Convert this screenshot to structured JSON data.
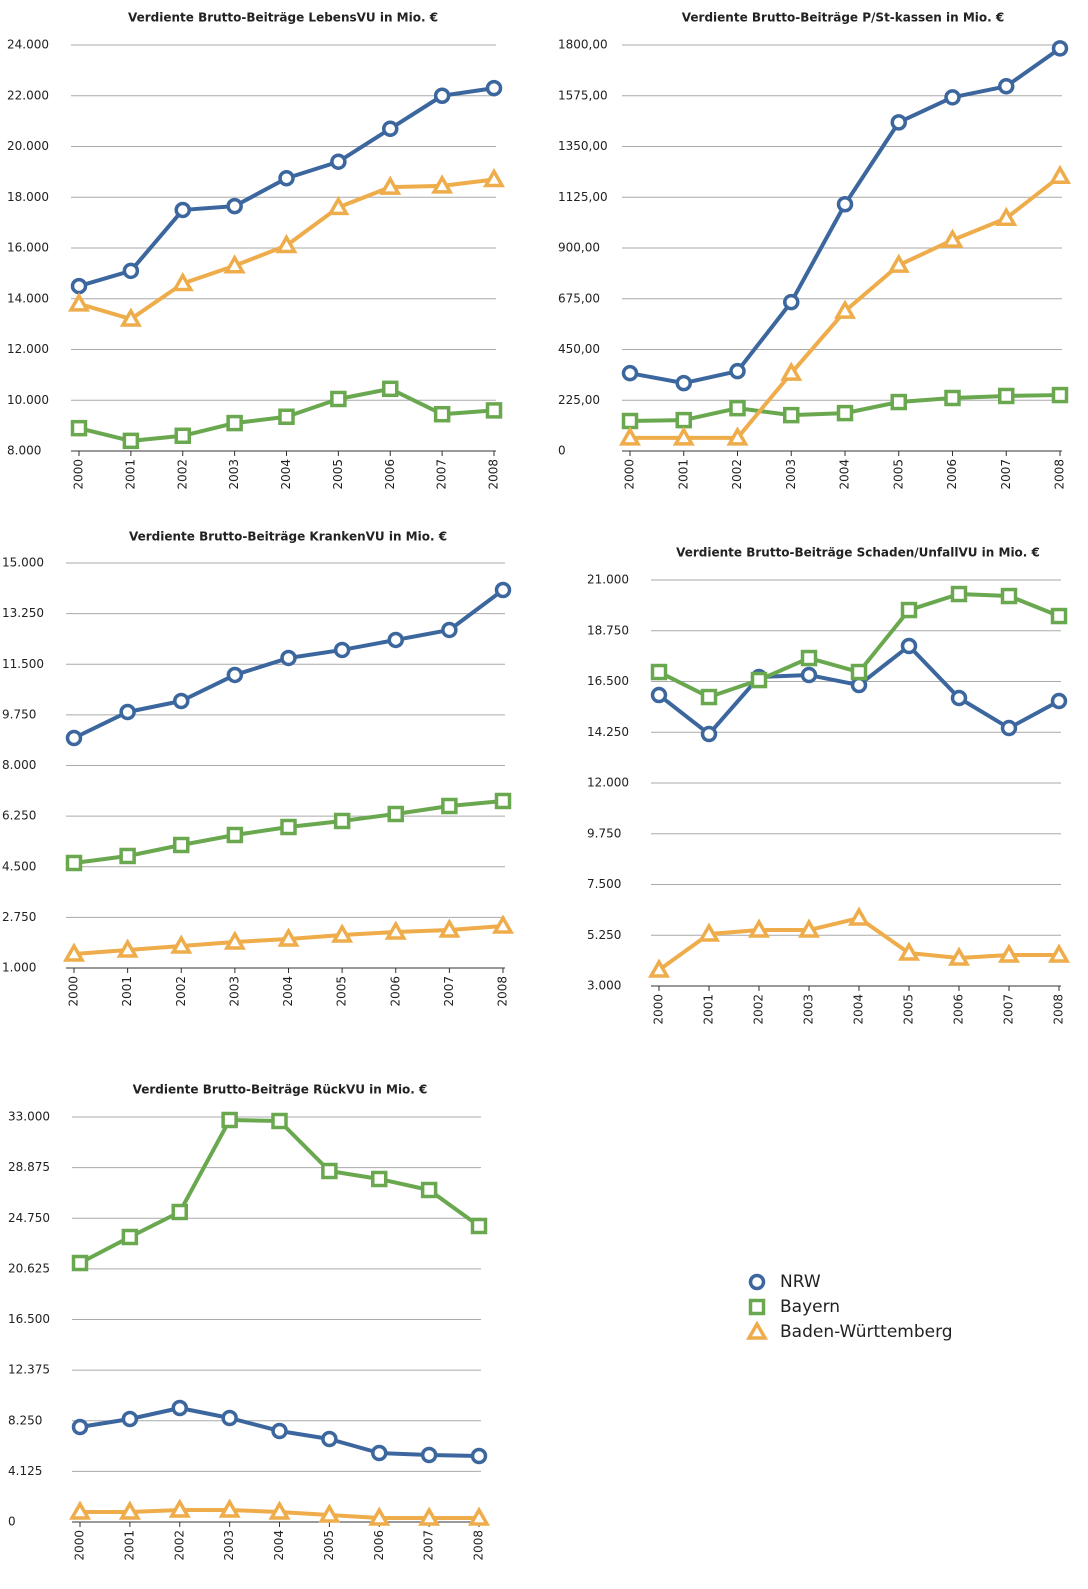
{
  "chart_data": [
    {
      "type": "line",
      "title": "Verdiente Brutto-Beiträge LebensVU in Mio. €",
      "categories": [
        "2000",
        "2001",
        "2002",
        "2003",
        "2004",
        "2005",
        "2006",
        "2007",
        "2008"
      ],
      "ylim": [
        8000,
        24000
      ],
      "yticks": [
        {
          "value": 8000,
          "label": "8.000"
        },
        {
          "value": 10000,
          "label": "10.000"
        },
        {
          "value": 12000,
          "label": "12.000"
        },
        {
          "value": 14000,
          "label": "14.000"
        },
        {
          "value": 16000,
          "label": "16.000"
        },
        {
          "value": 18000,
          "label": "18.000"
        },
        {
          "value": 20000,
          "label": "20.000"
        },
        {
          "value": 22000,
          "label": "22.000"
        },
        {
          "value": 24000,
          "label": "24.000"
        }
      ],
      "grid": true,
      "series": [
        {
          "name": "NRW",
          "color": "#3c679e",
          "marker": "circle",
          "values": [
            14500,
            15100,
            17500,
            17650,
            18750,
            19400,
            20700,
            22000,
            22300
          ]
        },
        {
          "name": "Bayern",
          "color": "#6aa84f",
          "marker": "square",
          "values": [
            8900,
            8400,
            8600,
            9100,
            9350,
            10050,
            10450,
            9450,
            9600
          ]
        },
        {
          "name": "Baden-Württemberg",
          "color": "#eeac4a",
          "marker": "triangle",
          "values": [
            13800,
            13200,
            14600,
            15300,
            16100,
            17600,
            18400,
            18450,
            18700
          ]
        }
      ]
    },
    {
      "type": "line",
      "title": "Verdiente Brutto-Beiträge P/St-kassen in Mio. €",
      "categories": [
        "2000",
        "2001",
        "2002",
        "2003",
        "2004",
        "2005",
        "2006",
        "2007",
        "2008"
      ],
      "ylim": [
        0,
        1800
      ],
      "yticks": [
        0,
        {
          "value": 225,
          "label": "225,00"
        },
        {
          "value": 450,
          "label": "450,00"
        },
        {
          "value": 675,
          "label": "675,00"
        },
        {
          "value": 900,
          "label": "900,00"
        },
        {
          "value": 1125,
          "label": "1125,00"
        },
        {
          "value": 1350,
          "label": "1350,00"
        },
        {
          "value": 1575,
          "label": "1575,00"
        },
        {
          "value": 1800,
          "label": "1800,00"
        }
      ],
      "grid": true,
      "series": [
        {
          "color": "#3c679e",
          "marker": "circle",
          "values": [
            345,
            301,
            354,
            660,
            1094,
            1457,
            1568,
            1617,
            1785
          ]
        },
        {
          "color": "#6aa84f",
          "marker": "square",
          "values": [
            133,
            137,
            190,
            159,
            168,
            217,
            235,
            244,
            248
          ]
        },
        {
          "color": "#eeac4a",
          "marker": "triangle",
          "values": [
            58,
            58,
            58,
            345,
            620,
            824,
            935,
            1032,
            1218
          ]
        }
      ]
    },
    {
      "type": "line",
      "title": "Verdiente Brutto-Beiträge KrankenVU in Mio. €",
      "categories": [
        "2000",
        "2001",
        "2002",
        "2003",
        "2004",
        "2005",
        "2006",
        "2007",
        "2008"
      ],
      "ylim": [
        1000,
        15000
      ],
      "yticks": [
        {
          "value": 1000,
          "label": "1.000"
        },
        {
          "value": 2750,
          "label": "2.750"
        },
        {
          "value": 4500,
          "label": "4.500"
        },
        {
          "value": 6250,
          "label": "6.250"
        },
        {
          "value": 8000,
          "label": "8.000"
        },
        {
          "value": 9750,
          "label": "9.750"
        },
        {
          "value": 11500,
          "label": "11.500"
        },
        {
          "value": 13250,
          "label": "13.250"
        },
        {
          "value": 15000,
          "label": "15.000"
        }
      ],
      "grid": true,
      "series": [
        {
          "color": "#3c679e",
          "marker": "circle",
          "values": [
            8951,
            9850,
            10230,
            11130,
            11717,
            11994,
            12340,
            12685,
            14067
          ]
        },
        {
          "color": "#6aa84f",
          "marker": "square",
          "values": [
            4630,
            4872,
            5252,
            5598,
            5874,
            6082,
            6324,
            6600,
            6773
          ]
        },
        {
          "color": "#eeac4a",
          "marker": "triangle",
          "values": [
            1484,
            1622,
            1760,
            1899,
            2003,
            2141,
            2245,
            2314,
            2452
          ]
        }
      ]
    },
    {
      "type": "line",
      "title": "Verdiente Brutto-Beiträge Schaden/UnfallVU in Mio. €",
      "categories": [
        "2000",
        "2001",
        "2002",
        "2003",
        "2004",
        "2005",
        "2006",
        "2007",
        "2008"
      ],
      "ylim": [
        3000,
        21000
      ],
      "yticks": [
        {
          "value": 3000,
          "label": "3.000"
        },
        {
          "value": 5250,
          "label": "5.250"
        },
        {
          "value": 7500,
          "label": "7.500"
        },
        {
          "value": 9750,
          "label": "9.750"
        },
        {
          "value": 12000,
          "label": "12.000"
        },
        {
          "value": 14250,
          "label": "14.250"
        },
        {
          "value": 16500,
          "label": "16.500"
        },
        {
          "value": 18750,
          "label": "18.750"
        },
        {
          "value": 21000,
          "label": "21.000"
        }
      ],
      "grid": true,
      "series": [
        {
          "color": "#3c679e",
          "marker": "circle",
          "values": [
            15900,
            14171,
            16698,
            16787,
            16343,
            18073,
            15768,
            14437,
            15634
          ]
        },
        {
          "color": "#6aa84f",
          "marker": "square",
          "values": [
            16920,
            15811,
            16565,
            17540,
            16920,
            19668,
            20378,
            20289,
            19402
          ]
        },
        {
          "color": "#eeac4a",
          "marker": "triangle",
          "values": [
            3709,
            5305,
            5482,
            5482,
            6014,
            4463,
            4241,
            4374,
            4374
          ]
        }
      ]
    },
    {
      "type": "line",
      "title": "Verdiente Brutto-Beiträge RückVU in Mio. €",
      "categories": [
        "2000",
        "2001",
        "2002",
        "2003",
        "2004",
        "2005",
        "2006",
        "2007",
        "2008"
      ],
      "ylim": [
        0,
        33000
      ],
      "yticks": [
        0,
        {
          "value": 4125,
          "label": "4.125"
        },
        {
          "value": 8250,
          "label": "8.250"
        },
        {
          "value": 12375,
          "label": "12.375"
        },
        {
          "value": 16500,
          "label": "16.500"
        },
        {
          "value": 20625,
          "label": "20.625"
        },
        {
          "value": 24750,
          "label": "24.750"
        },
        {
          "value": 28875,
          "label": "28.875"
        },
        {
          "value": 33000,
          "label": "33.000"
        }
      ],
      "grid": true,
      "series": [
        {
          "color": "#3c679e",
          "marker": "circle",
          "values": [
            7741,
            8393,
            9289,
            8474,
            7415,
            6763,
            5622,
            5459,
            5378
          ]
        },
        {
          "color": "#6aa84f",
          "marker": "square",
          "values": [
            21103,
            23222,
            25259,
            32756,
            32674,
            28600,
            27948,
            27052,
            24118
          ]
        },
        {
          "color": "#eeac4a",
          "marker": "triangle",
          "values": [
            815,
            815,
            978,
            978,
            815,
            570,
            326,
            326,
            326
          ]
        }
      ]
    }
  ]
}
